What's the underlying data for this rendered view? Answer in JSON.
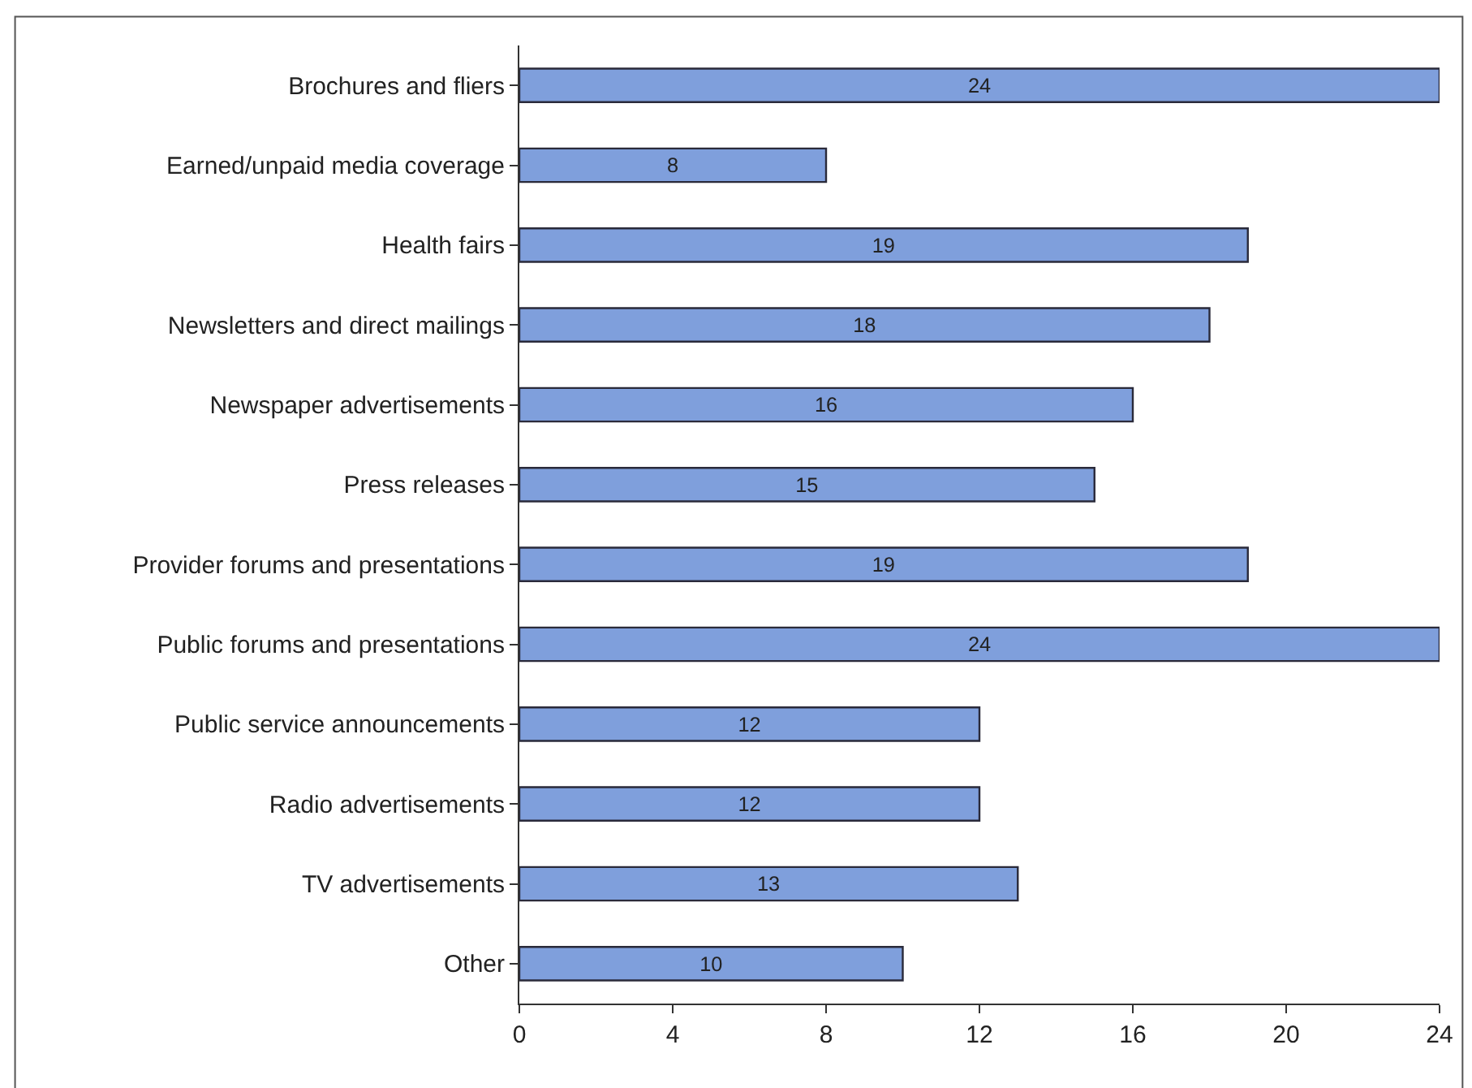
{
  "chart_data": {
    "type": "bar",
    "orientation": "horizontal",
    "categories": [
      "Brochures and fliers",
      "Earned/unpaid media coverage",
      "Health fairs",
      "Newsletters and direct mailings",
      "Newspaper advertisements",
      "Press releases",
      "Provider forums and presentations",
      "Public forums and presentations",
      "Public service announcements",
      "Radio advertisements",
      "TV advertisements",
      "Other"
    ],
    "values": [
      24,
      8,
      19,
      18,
      16,
      15,
      19,
      24,
      12,
      12,
      13,
      10
    ],
    "color": "#7f9fdc",
    "xlim": [
      0,
      24
    ],
    "xticks": [
      0,
      4,
      8,
      12,
      16,
      20,
      24
    ],
    "data_labels": true,
    "grid": false
  }
}
